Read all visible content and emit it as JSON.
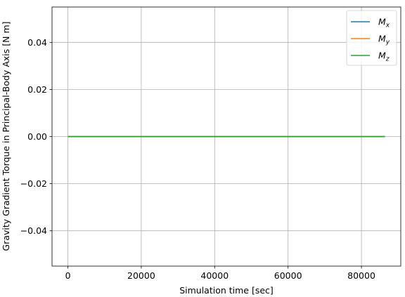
{
  "chart_data": {
    "type": "line",
    "title": "",
    "xlabel": "Simulation time [sec]",
    "ylabel": "Gravity Gradient Torque in Principal-Body Axis [N m]",
    "xlim": [
      -4320,
      90720
    ],
    "ylim": [
      -0.055,
      0.055
    ],
    "x_ticks": [
      0,
      20000,
      40000,
      60000,
      80000
    ],
    "x_tick_labels": [
      "0",
      "20000",
      "40000",
      "60000",
      "80000"
    ],
    "y_ticks": [
      -0.04,
      -0.02,
      0.0,
      0.02,
      0.04
    ],
    "y_tick_labels": [
      "−0.04",
      "−0.02",
      "0.00",
      "0.02",
      "0.04"
    ],
    "grid": true,
    "legend_position": "top-right",
    "series": [
      {
        "name": "M",
        "subscript": "x",
        "color": "#1f77b4",
        "x": [
          0,
          86400
        ],
        "y": [
          0.0,
          0.0
        ]
      },
      {
        "name": "M",
        "subscript": "y",
        "color": "#ff7f0e",
        "x": [
          0,
          86400
        ],
        "y": [
          0.0,
          0.0
        ]
      },
      {
        "name": "M",
        "subscript": "z",
        "color": "#2ca02c",
        "x": [
          0,
          86400
        ],
        "y": [
          0.0,
          0.0
        ]
      }
    ]
  }
}
